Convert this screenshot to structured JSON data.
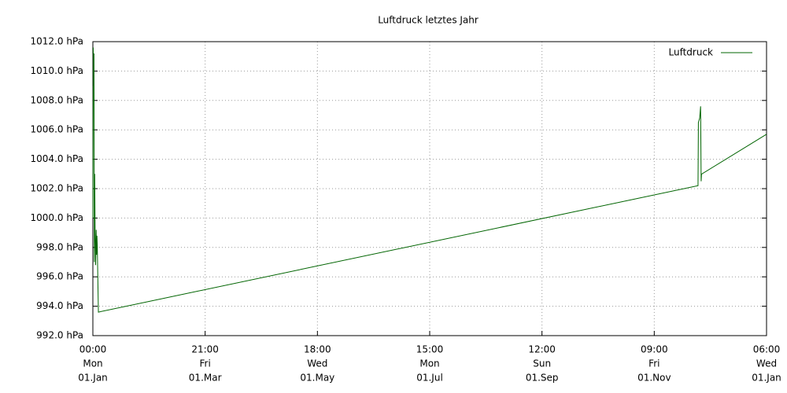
{
  "chart_data": {
    "type": "line",
    "title": "Luftdruck letztes Jahr",
    "x": [
      0,
      0.2,
      0.4,
      0.6,
      0.8,
      1.0,
      1.2,
      1.5,
      1.8,
      2.0,
      2.2,
      2.4,
      3.0,
      328.1,
      328.3,
      329.0,
      329.5,
      329.8,
      330.0,
      330.2,
      365.25
    ],
    "series": [
      {
        "name": "Luftdruck",
        "color": "#006400",
        "values": [
          1000.0,
          1011.6,
          1009.0,
          1011.2,
          997.0,
          1003.0,
          999.0,
          996.8,
          999.2,
          997.5,
          998.8,
          998.1,
          993.6,
          1002.2,
          1006.5,
          1006.8,
          1007.6,
          1002.5,
          1003.0,
          1003.0,
          1005.7
        ]
      }
    ],
    "xlim": [
      0,
      365.25
    ],
    "xticks": [
      {
        "value": 0,
        "label": [
          "00:00",
          "Mon",
          "01.Jan"
        ]
      },
      {
        "value": 60.875,
        "label": [
          "21:00",
          "Fri",
          "01.Mar"
        ]
      },
      {
        "value": 121.75,
        "label": [
          "18:00",
          "Wed",
          "01.May"
        ]
      },
      {
        "value": 182.625,
        "label": [
          "15:00",
          "Mon",
          "01.Jul"
        ]
      },
      {
        "value": 243.5,
        "label": [
          "12:00",
          "Sun",
          "01.Sep"
        ]
      },
      {
        "value": 304.375,
        "label": [
          "09:00",
          "Fri",
          "01.Nov"
        ]
      },
      {
        "value": 365.25,
        "label": [
          "06:00",
          "Wed",
          "01.Jan"
        ]
      }
    ],
    "ylim": [
      992,
      1012
    ],
    "yticks": [
      {
        "value": 992,
        "label": "992.0 hPa"
      },
      {
        "value": 994,
        "label": "994.0 hPa"
      },
      {
        "value": 996,
        "label": "996.0 hPa"
      },
      {
        "value": 998,
        "label": "998.0 hPa"
      },
      {
        "value": 1000,
        "label": "1000.0 hPa"
      },
      {
        "value": 1002,
        "label": "1002.0 hPa"
      },
      {
        "value": 1004,
        "label": "1004.0 hPa"
      },
      {
        "value": 1006,
        "label": "1006.0 hPa"
      },
      {
        "value": 1008,
        "label": "1008.0 hPa"
      },
      {
        "value": 1010,
        "label": "1010.0 hPa"
      },
      {
        "value": 1012,
        "label": "1012.0 hPa"
      }
    ],
    "grid": true,
    "legend": "top-right"
  }
}
